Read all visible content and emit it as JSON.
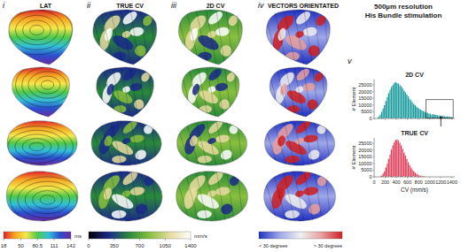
{
  "header": {
    "title": "500µm resolution",
    "subtitle": "His Bundle stimulation"
  },
  "panels": [
    {
      "numeral": "i",
      "label": "LAT"
    },
    {
      "numeral": "ii",
      "label": "TRUE CV"
    },
    {
      "numeral": "iii",
      "label": "2D CV"
    },
    {
      "numeral": "iv",
      "label": "VECTORS ORIENTATED"
    }
  ],
  "colorbars": [
    {
      "lim": [
        18,
        142
      ],
      "ticks": [
        18,
        50,
        80.5,
        111,
        142
      ],
      "unit": "ms",
      "colors": [
        "#e0202a",
        "#f5a623",
        "#f7e84a",
        "#4fc94a",
        "#33c0d8",
        "#2a4fd0",
        "#6a2aa0"
      ]
    },
    {
      "lim": [
        0,
        1400
      ],
      "ticks": [
        0,
        350,
        700,
        1050,
        1400
      ],
      "unit": "mm/s",
      "colors": [
        "#000000",
        "#1b2a8a",
        "#2a8a3a",
        "#8ac040",
        "#e8dca0",
        "#ffffff"
      ]
    },
    {
      "labels": [
        "< 30 degrees",
        "> 30 degrees"
      ],
      "colors": [
        "#2030c0",
        "#a0a8e8",
        "#f0f0f0",
        "#e8a0a0",
        "#d02020"
      ]
    }
  ],
  "histogram_panel": "v",
  "chart_data": [
    {
      "type": "histogram",
      "title": "2D CV",
      "ylabel": "# Element",
      "color": "#1f9ea0",
      "bins": [
        50,
        75,
        100,
        125,
        150,
        175,
        200,
        225,
        250,
        275,
        300,
        325,
        350,
        375,
        400,
        425,
        450,
        475,
        500,
        525,
        550,
        575,
        600,
        625,
        650,
        675,
        700,
        725,
        750,
        775,
        800,
        825,
        850,
        875,
        900,
        925,
        950,
        975,
        1000,
        1025,
        1050,
        1075,
        1100,
        1125,
        1150,
        1175,
        1200,
        1225,
        1250,
        1275,
        1300,
        1325,
        1350,
        1375,
        1400
      ],
      "values": [
        500,
        1500,
        3000,
        5000,
        7500,
        10000,
        13000,
        16000,
        19000,
        21500,
        23500,
        25000,
        26500,
        27000,
        26500,
        26000,
        25000,
        24000,
        22500,
        21000,
        19500,
        18000,
        16500,
        15000,
        13500,
        12000,
        11000,
        10000,
        9000,
        8000,
        7300,
        6600,
        6000,
        5500,
        5000,
        4600,
        4200,
        3900,
        3600,
        3300,
        3100,
        2900,
        2700,
        2500,
        2300,
        2200,
        2000,
        1900,
        1800,
        1700,
        1600,
        1500,
        1400,
        1300
      ],
      "xlim": [
        0,
        1450
      ],
      "ylim": [
        0,
        29000
      ],
      "xticks": [
        0,
        200,
        400,
        600,
        800,
        1000,
        1200,
        1400
      ],
      "yticks": [
        0,
        5000,
        10000,
        15000,
        20000,
        25000
      ],
      "tick_labels": "y",
      "highlight": {
        "xlim": [
          930,
          1420
        ],
        "ylim": [
          0,
          14000
        ]
      },
      "arrow_x": 1200
    },
    {
      "type": "histogram",
      "title": "TRUE CV",
      "ylabel": "# Element",
      "xlabel": "CV (mm/s)",
      "color": "#e0445f",
      "bins": [
        100,
        125,
        150,
        175,
        200,
        225,
        250,
        275,
        300,
        325,
        350,
        375,
        400,
        425,
        450,
        475,
        500,
        525,
        550,
        575,
        600,
        625,
        650,
        675,
        700,
        725,
        750,
        775,
        800,
        825,
        850,
        875,
        900,
        925
      ],
      "values": [
        300,
        1000,
        2500,
        4500,
        7000,
        10000,
        13500,
        17000,
        20500,
        23500,
        26000,
        27500,
        28000,
        27000,
        25500,
        23500,
        21000,
        18500,
        16000,
        13500,
        11000,
        9000,
        7000,
        5500,
        4200,
        3200,
        2400,
        1800,
        1300,
        900,
        600,
        400,
        250
      ],
      "xlim": [
        0,
        1450
      ],
      "ylim": [
        0,
        29000
      ],
      "xticks": [
        0,
        200,
        400,
        600,
        800,
        1000,
        1200,
        1400
      ],
      "yticks": [
        0,
        5000,
        10000,
        15000,
        20000,
        25000
      ]
    }
  ]
}
